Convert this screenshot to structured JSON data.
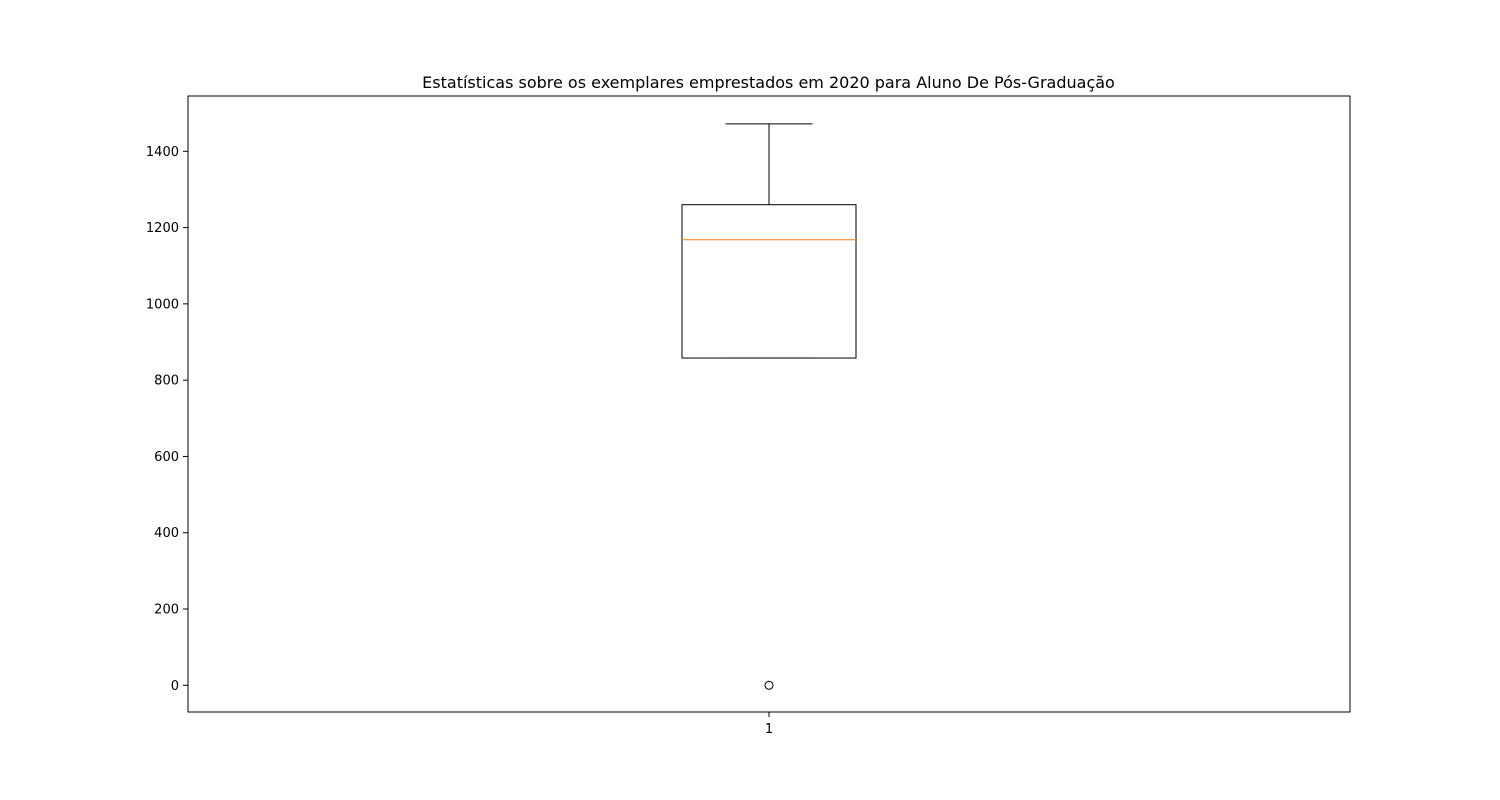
{
  "chart_data": {
    "type": "box",
    "title": "Estatísticas sobre os exemplares emprestados em 2020 para Aluno De Pós-Graduação",
    "xlabel": "",
    "ylabel": "",
    "ylim": [
      -70,
      1545
    ],
    "yticks": [
      0,
      200,
      400,
      600,
      800,
      1000,
      1200,
      1400
    ],
    "ytick_labels": [
      "0",
      "200",
      "400",
      "600",
      "800",
      "1000",
      "1200",
      "1400"
    ],
    "categories": [
      "1"
    ],
    "boxes": [
      {
        "label": "1",
        "whisker_low": 858,
        "q1": 858,
        "median": 1168,
        "q3": 1260,
        "whisker_high": 1472,
        "outliers": [
          0
        ]
      }
    ],
    "grid": false,
    "colors": {
      "box": "#000000",
      "median": "#ff7f0e",
      "outlier": "#000000"
    }
  }
}
